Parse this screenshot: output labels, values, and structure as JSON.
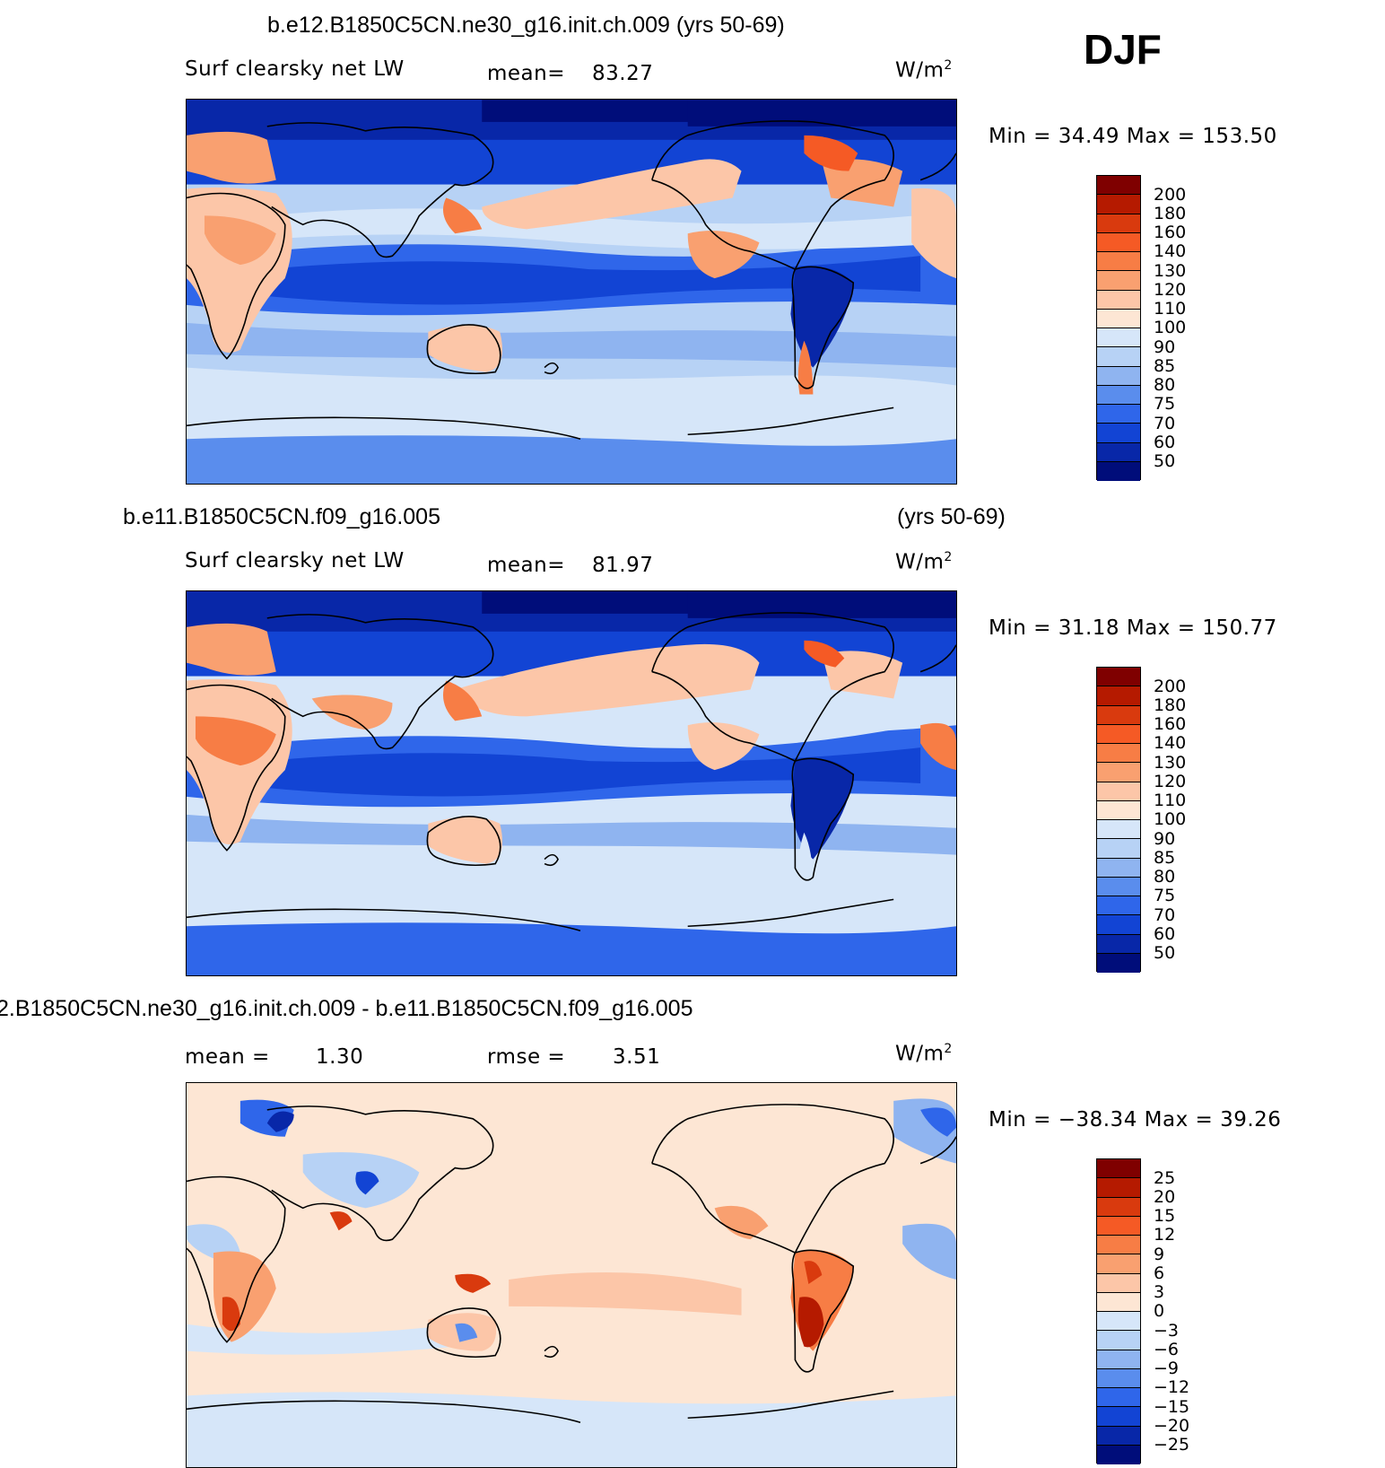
{
  "season": "DJF",
  "panels": [
    {
      "case_title": "b.e12.B1850C5CN.ne30_g16.init.ch.009 (yrs 50-69)",
      "case_title_right": "",
      "variable": "Surf clearsky net LW",
      "stat_label": "mean=",
      "stat_value": "83.27",
      "units": "W/m",
      "units_sup": "2",
      "min_max": "Min =   34.49 Max = 153.50",
      "kind": "abs"
    },
    {
      "case_title": "b.e11.B1850C5CN.f09_g16.005",
      "case_title_right": "(yrs 50-69)",
      "variable": "Surf clearsky net LW",
      "stat_label": "mean=",
      "stat_value": "81.97",
      "units": "W/m",
      "units_sup": "2",
      "min_max": "Min =   31.18 Max = 150.77",
      "kind": "abs"
    },
    {
      "case_title": "2.B1850C5CN.ne30_g16.init.ch.009 - b.e11.B1850C5CN.f09_g16.005",
      "case_title_right": "",
      "variable": "",
      "stat_label": "mean =",
      "stat_value": "1.30",
      "stat2_label": "rmse =",
      "stat2_value": "3.51",
      "units": "W/m",
      "units_sup": "2",
      "min_max": "Min = −38.34 Max =   39.26",
      "kind": "diff"
    }
  ],
  "colorbar_abs": {
    "labels": [
      "200",
      "180",
      "160",
      "140",
      "130",
      "120",
      "110",
      "100",
      "90",
      "85",
      "80",
      "75",
      "70",
      "60",
      "50"
    ],
    "colors": [
      "#7f0000",
      "#b51a00",
      "#d93a0e",
      "#f55a25",
      "#f77d45",
      "#f9a070",
      "#fcc6a8",
      "#fde6d4",
      "#d6e6f9",
      "#b7d2f5",
      "#8fb4f0",
      "#5a8ded",
      "#2f66ea",
      "#1244d4",
      "#0827a8",
      "#000d7a"
    ]
  },
  "colorbar_diff": {
    "labels": [
      "25",
      "20",
      "15",
      "12",
      "9",
      "6",
      "3",
      "0",
      "−3",
      "−6",
      "−9",
      "−12",
      "−15",
      "−20",
      "−25"
    ],
    "colors": [
      "#7f0000",
      "#b51a00",
      "#d93a0e",
      "#f55a25",
      "#f77d45",
      "#f9a070",
      "#fcc6a8",
      "#fde6d4",
      "#d6e6f9",
      "#b7d2f5",
      "#8fb4f0",
      "#5a8ded",
      "#2f66ea",
      "#1244d4",
      "#0827a8",
      "#000d7a"
    ]
  }
}
